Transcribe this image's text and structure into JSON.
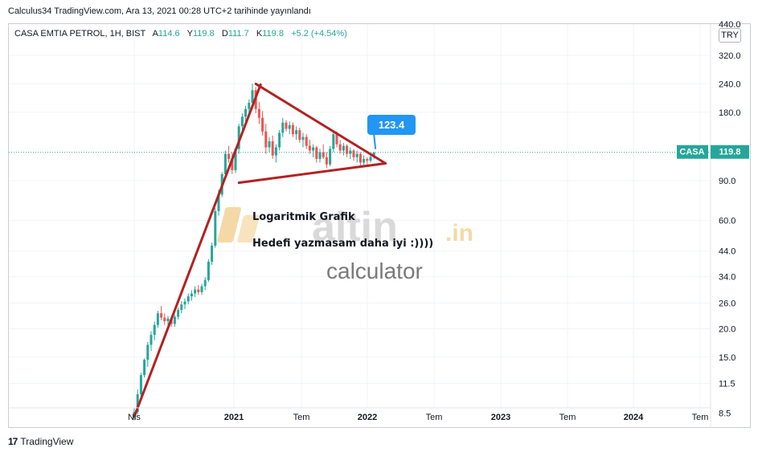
{
  "caption": "Calculus34 TradingView.com, Ara 13, 2021 00:28 UTC+2 tarihinde yayınlandı",
  "legend": {
    "symbol": "CASA EMTIA PETROL, 1H, BIST",
    "a_label": "A",
    "a_value": "114.6",
    "y_label": "Y",
    "y_value": "119.8",
    "d_label": "D",
    "d_value": "111.7",
    "k_label": "K",
    "k_value": "119.8",
    "change": "+5.2 (+4.54%)"
  },
  "currency": "TRY",
  "footer": {
    "brand": "TradingView"
  },
  "colors": {
    "up": "#26a69a",
    "down": "#ef5350",
    "trendline": "#b22222",
    "callout": "#2196f3",
    "grid": "#f0f3fa"
  },
  "annotations": {
    "text1": "Logaritmik Grafik",
    "text2": "Hedefi yazmasam daha iyi :))))",
    "callout_value": "123.4",
    "watermark_brand": "altin",
    "watermark_tld": ".in",
    "watermark_sub": "calculator"
  },
  "chart_data": {
    "type": "candlestick",
    "y_scale": "log",
    "ylim": [
      7.5,
      440
    ],
    "y_ticks": [
      8.5,
      11.5,
      15.0,
      20.0,
      26.0,
      34.0,
      44.0,
      60.0,
      90.0,
      180.0,
      240.0,
      320.0,
      440.0
    ],
    "y_tick_labels": [
      "8.5",
      "11.5",
      "15.0",
      "20.0",
      "26.0",
      "34.0",
      "44.0",
      "60.0",
      "90.0",
      "180.0",
      "240.0",
      "320.0",
      "440.0"
    ],
    "x_ticks": [
      "Nis",
      "2021",
      "Tem",
      "2022",
      "Tem",
      "2023",
      "Tem",
      "2024",
      "Tem"
    ],
    "bold_x_ticks": [
      "2021",
      "2022",
      "2023",
      "2024"
    ],
    "last_price": {
      "label": "CASA",
      "value": 119.8
    },
    "trend_lines": [
      {
        "from": {
          "week": 0,
          "price": 8.2
        },
        "to": {
          "week": 36,
          "price": 240
        }
      },
      {
        "from": {
          "week": 36,
          "price": 240
        },
        "to": {
          "week": 73,
          "price": 108
        }
      },
      {
        "from": {
          "week": 31,
          "price": 88
        },
        "to": {
          "week": 73,
          "price": 108
        }
      }
    ],
    "candles": [
      [
        8.2,
        9.0,
        7.9,
        8.6
      ],
      [
        8.6,
        10.8,
        8.4,
        10.3
      ],
      [
        10.3,
        12.8,
        10.0,
        12.5
      ],
      [
        12.5,
        14.8,
        12.2,
        14.6
      ],
      [
        14.6,
        17.5,
        13.6,
        17.0
      ],
      [
        17.0,
        19.5,
        16.0,
        18.8
      ],
      [
        18.8,
        21.5,
        17.8,
        20.8
      ],
      [
        20.8,
        24.0,
        20.2,
        23.4
      ],
      [
        23.4,
        25.2,
        21.8,
        22.4
      ],
      [
        22.4,
        23.4,
        20.8,
        21.6
      ],
      [
        21.6,
        22.8,
        20.6,
        22.2
      ],
      [
        22.2,
        22.8,
        20.4,
        21.0
      ],
      [
        21.0,
        23.0,
        20.4,
        22.6
      ],
      [
        22.6,
        24.8,
        22.0,
        24.2
      ],
      [
        24.2,
        26.5,
        23.4,
        25.6
      ],
      [
        25.6,
        27.2,
        24.4,
        26.4
      ],
      [
        26.4,
        28.6,
        25.6,
        27.8
      ],
      [
        27.8,
        29.6,
        26.6,
        28.6
      ],
      [
        28.6,
        30.8,
        27.6,
        29.8
      ],
      [
        29.8,
        31.2,
        28.2,
        29.0
      ],
      [
        29.0,
        31.6,
        28.2,
        30.8
      ],
      [
        30.8,
        33.8,
        29.6,
        32.8
      ],
      [
        32.8,
        40.5,
        32.2,
        39.5
      ],
      [
        39.5,
        48.0,
        38.2,
        46.5
      ],
      [
        46.5,
        68.0,
        45.5,
        66.0
      ],
      [
        66.0,
        82.0,
        63.0,
        78.0
      ],
      [
        78.0,
        98.0,
        76.0,
        96.0
      ],
      [
        96.0,
        122.0,
        92.0,
        118.0
      ],
      [
        118.0,
        128.0,
        108.0,
        112.0
      ],
      [
        112.0,
        120.0,
        96.0,
        100.0
      ],
      [
        100.0,
        126.0,
        97.0,
        124.0
      ],
      [
        124.0,
        160.0,
        118.0,
        156.0
      ],
      [
        156.0,
        178.0,
        150.0,
        172.0
      ],
      [
        172.0,
        192.0,
        164.0,
        186.0
      ],
      [
        186.0,
        205.0,
        176.0,
        198.0
      ],
      [
        198.0,
        240.0,
        190.0,
        225.0
      ],
      [
        225.0,
        232.0,
        178.0,
        186.0
      ],
      [
        186.0,
        200.0,
        160.0,
        170.0
      ],
      [
        170.0,
        182.0,
        142.0,
        148.0
      ],
      [
        148.0,
        160.0,
        118.0,
        126.0
      ],
      [
        126.0,
        140.0,
        120.0,
        134.0
      ],
      [
        134.0,
        142.0,
        112.0,
        116.0
      ],
      [
        116.0,
        130.0,
        108.0,
        126.0
      ],
      [
        126.0,
        150.0,
        122.0,
        146.0
      ],
      [
        146.0,
        170.0,
        140.0,
        162.0
      ],
      [
        162.0,
        166.0,
        148.0,
        152.0
      ],
      [
        152.0,
        164.0,
        144.0,
        158.0
      ],
      [
        158.0,
        162.0,
        140.0,
        144.0
      ],
      [
        144.0,
        156.0,
        136.0,
        150.0
      ],
      [
        150.0,
        154.0,
        132.0,
        136.0
      ],
      [
        136.0,
        146.0,
        126.0,
        140.0
      ],
      [
        140.0,
        144.0,
        124.0,
        128.0
      ],
      [
        128.0,
        136.0,
        118.0,
        122.0
      ],
      [
        122.0,
        130.0,
        114.0,
        126.0
      ],
      [
        126.0,
        128.0,
        108.0,
        112.0
      ],
      [
        112.0,
        124.0,
        108.0,
        120.0
      ],
      [
        120.0,
        130.0,
        112.0,
        114.0
      ],
      [
        114.0,
        120.0,
        102.0,
        106.0
      ],
      [
        106.0,
        128.0,
        104.0,
        124.0
      ],
      [
        124.0,
        148.0,
        120.0,
        144.0
      ],
      [
        144.0,
        148.0,
        126.0,
        130.0
      ],
      [
        130.0,
        136.0,
        118.0,
        122.0
      ],
      [
        122.0,
        132.0,
        116.0,
        128.0
      ],
      [
        128.0,
        130.0,
        114.0,
        118.0
      ],
      [
        118.0,
        126.0,
        112.0,
        122.0
      ],
      [
        122.0,
        124.0,
        110.0,
        114.0
      ],
      [
        114.0,
        122.0,
        108.0,
        118.0
      ],
      [
        118.0,
        120.0,
        104.0,
        108.0
      ],
      [
        108.0,
        116.0,
        104.0,
        112.0
      ],
      [
        112.0,
        114.0,
        106.0,
        110.0
      ],
      [
        110.0,
        118.0,
        108.0,
        114.6
      ],
      [
        114.6,
        119.8,
        111.7,
        119.8
      ]
    ]
  }
}
